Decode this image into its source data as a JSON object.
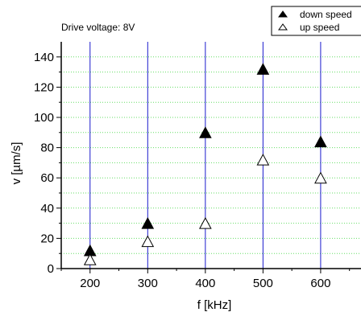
{
  "chart_data": {
    "type": "scatter",
    "annotation": "Drive voltage: 8V",
    "xlabel": "f [kHz]",
    "ylabel": "v [µm/s]",
    "xlim": [
      150,
      670
    ],
    "ylim": [
      0,
      150
    ],
    "xticks": [
      200,
      300,
      400,
      500,
      600
    ],
    "yticks": [
      0,
      20,
      40,
      60,
      80,
      100,
      120,
      140
    ],
    "grid": {
      "horizontal": "dotted green",
      "vertical_lines_at_x": [
        200,
        300,
        400,
        500,
        600
      ]
    },
    "legend_position": "top-right",
    "series": [
      {
        "name": "down speed",
        "marker": "filled-triangle",
        "x": [
          200,
          300,
          400,
          500,
          600
        ],
        "y": [
          12,
          30,
          90,
          132,
          84
        ]
      },
      {
        "name": "up speed",
        "marker": "open-triangle",
        "x": [
          200,
          300,
          400,
          500,
          600
        ],
        "y": [
          6,
          18,
          30,
          72,
          60
        ]
      }
    ],
    "colors": {
      "vertical_lines": "#1a1acc",
      "grid": "#66dd66"
    }
  }
}
